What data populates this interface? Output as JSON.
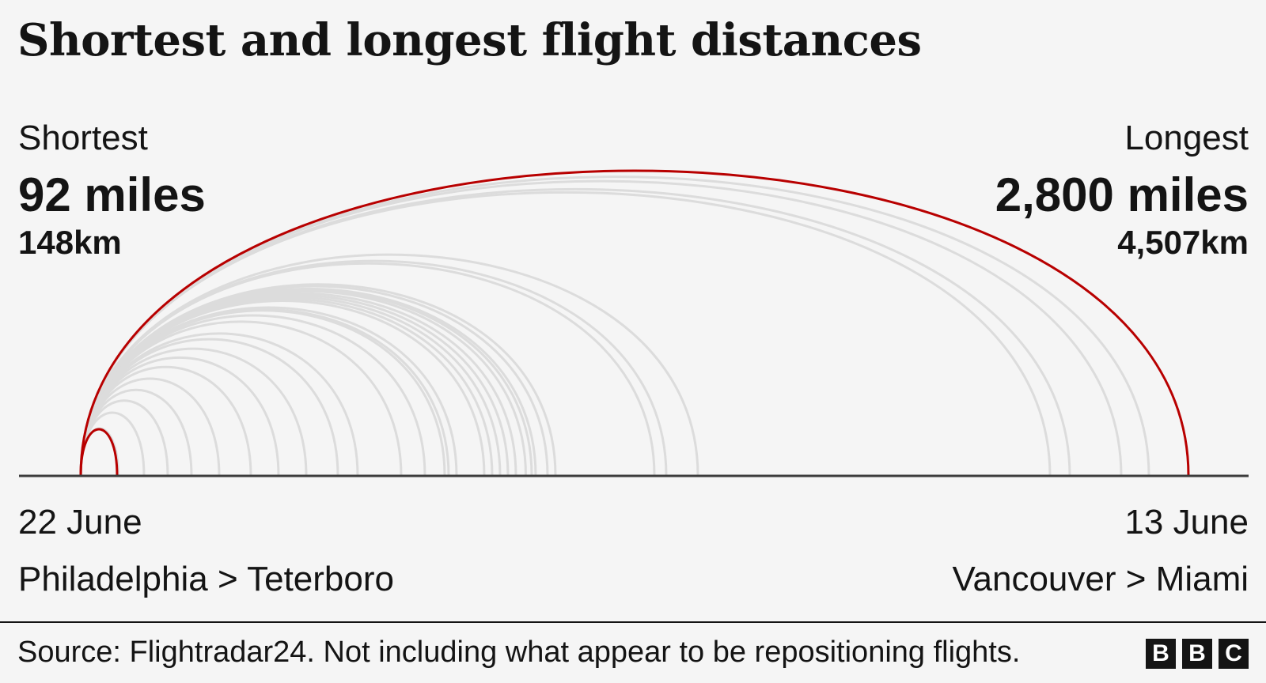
{
  "title": "Shortest and longest flight distances",
  "shortest": {
    "label": "Shortest",
    "miles": "92 miles",
    "km": "148km",
    "date": "22 June",
    "route": "Philadelphia > Teterboro"
  },
  "longest": {
    "label": "Longest",
    "miles": "2,800 miles",
    "km": "4,507km",
    "date": "13 June",
    "route": "Vancouver > Miami"
  },
  "source": "Source: Flightradar24. Not including what appear to be repositioning flights.",
  "logo": [
    "B",
    "B",
    "C"
  ],
  "colors": {
    "highlight": "#b80000",
    "other": "#dcdcdc",
    "axis": "#3c3c3c"
  },
  "chart_data": {
    "type": "arc",
    "unit": "miles",
    "highlighted": [
      92,
      2800
    ],
    "other_flights": [
      95,
      160,
      220,
      280,
      350,
      430,
      500,
      570,
      650,
      700,
      810,
      870,
      920,
      930,
      950,
      1020,
      1040,
      1060,
      1080,
      1100,
      1125,
      1140,
      1150,
      1180,
      1200,
      1450,
      1480,
      1560,
      2450,
      2500,
      2630,
      2700
    ]
  }
}
